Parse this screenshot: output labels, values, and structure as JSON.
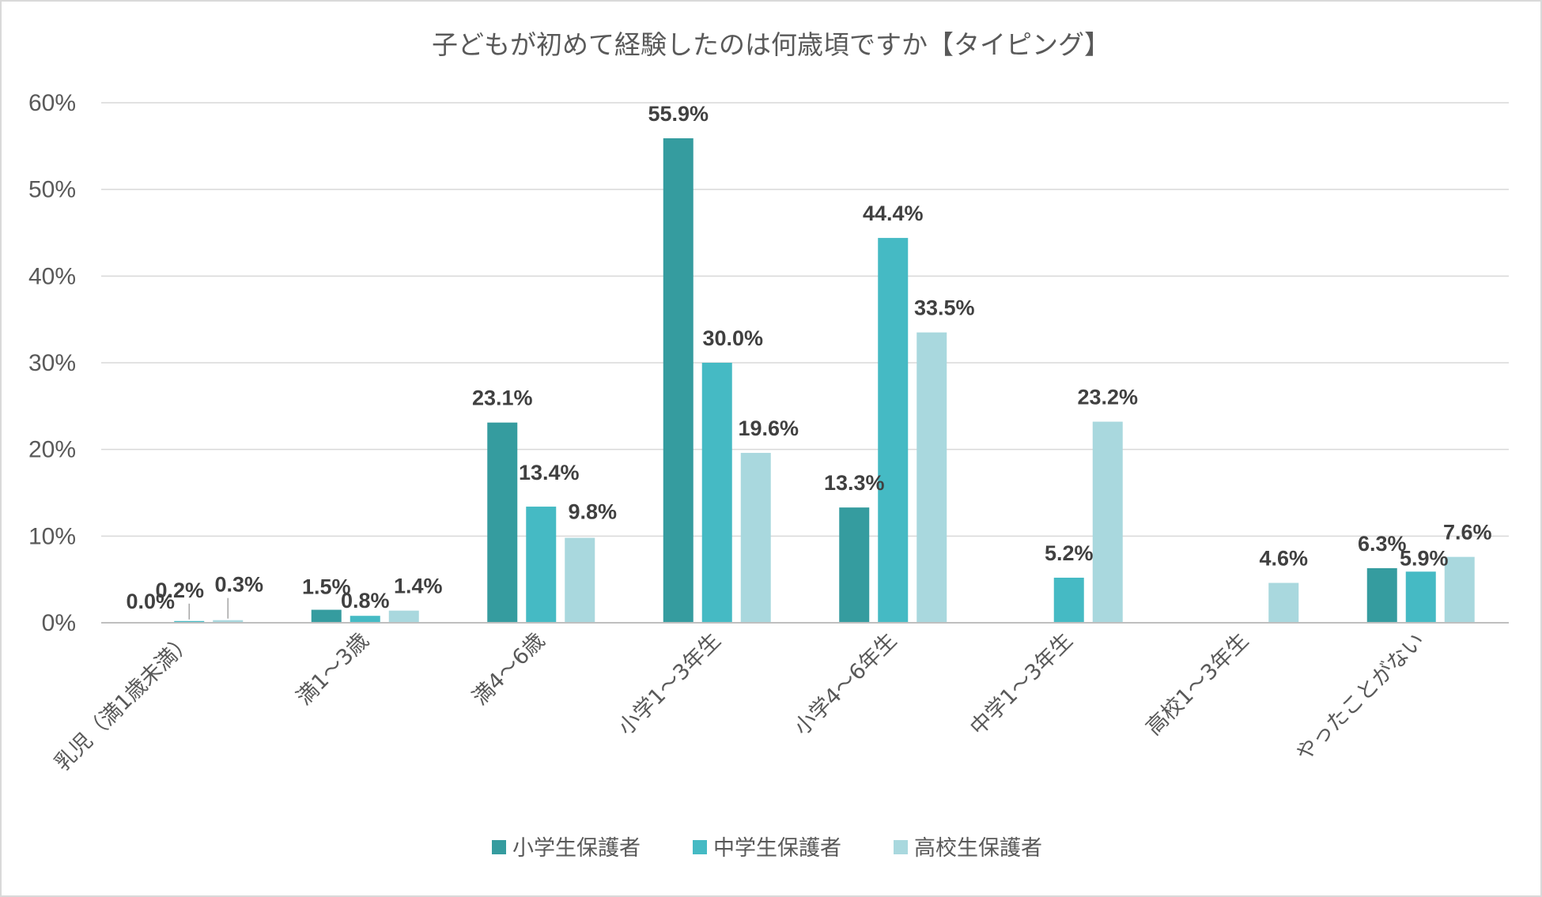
{
  "chart_data": {
    "type": "bar",
    "title": "子どもが初めて経験したのは何歳頃ですか【タイピング】",
    "xlabel": "",
    "ylabel": "",
    "ylim": [
      0,
      60
    ],
    "ytick_step": 10,
    "ytick_labels": [
      "0%",
      "10%",
      "20%",
      "30%",
      "40%",
      "50%",
      "60%"
    ],
    "grid": true,
    "legend_position": "bottom",
    "categories": [
      "乳児（満1歳未満）",
      "満1～3歳",
      "満4～6歳",
      "小学1～3年生",
      "小学4～6年生",
      "中学1～3年生",
      "高校1～3年生",
      "やったことがない"
    ],
    "series": [
      {
        "name": "小学生保護者",
        "color": "#359C9F",
        "values": [
          0.0,
          1.5,
          23.1,
          55.9,
          13.3,
          null,
          null,
          6.3
        ],
        "labels": [
          "0.0%",
          "1.5%",
          "23.1%",
          "55.9%",
          "13.3%",
          null,
          null,
          "6.3%"
        ]
      },
      {
        "name": "中学生保護者",
        "color": "#45BAC4",
        "values": [
          0.2,
          0.8,
          13.4,
          30.0,
          44.4,
          5.2,
          null,
          5.9
        ],
        "labels": [
          "0.2%",
          "0.8%",
          "13.4%",
          "30.0%",
          "44.4%",
          "5.2%",
          null,
          "5.9%"
        ]
      },
      {
        "name": "高校生保護者",
        "color": "#A9D8DE",
        "values": [
          0.3,
          1.4,
          9.8,
          19.6,
          33.5,
          23.2,
          4.6,
          7.6
        ],
        "labels": [
          "0.3%",
          "1.4%",
          "9.8%",
          "19.6%",
          "33.5%",
          "23.2%",
          "4.6%",
          "7.6%"
        ]
      }
    ]
  }
}
